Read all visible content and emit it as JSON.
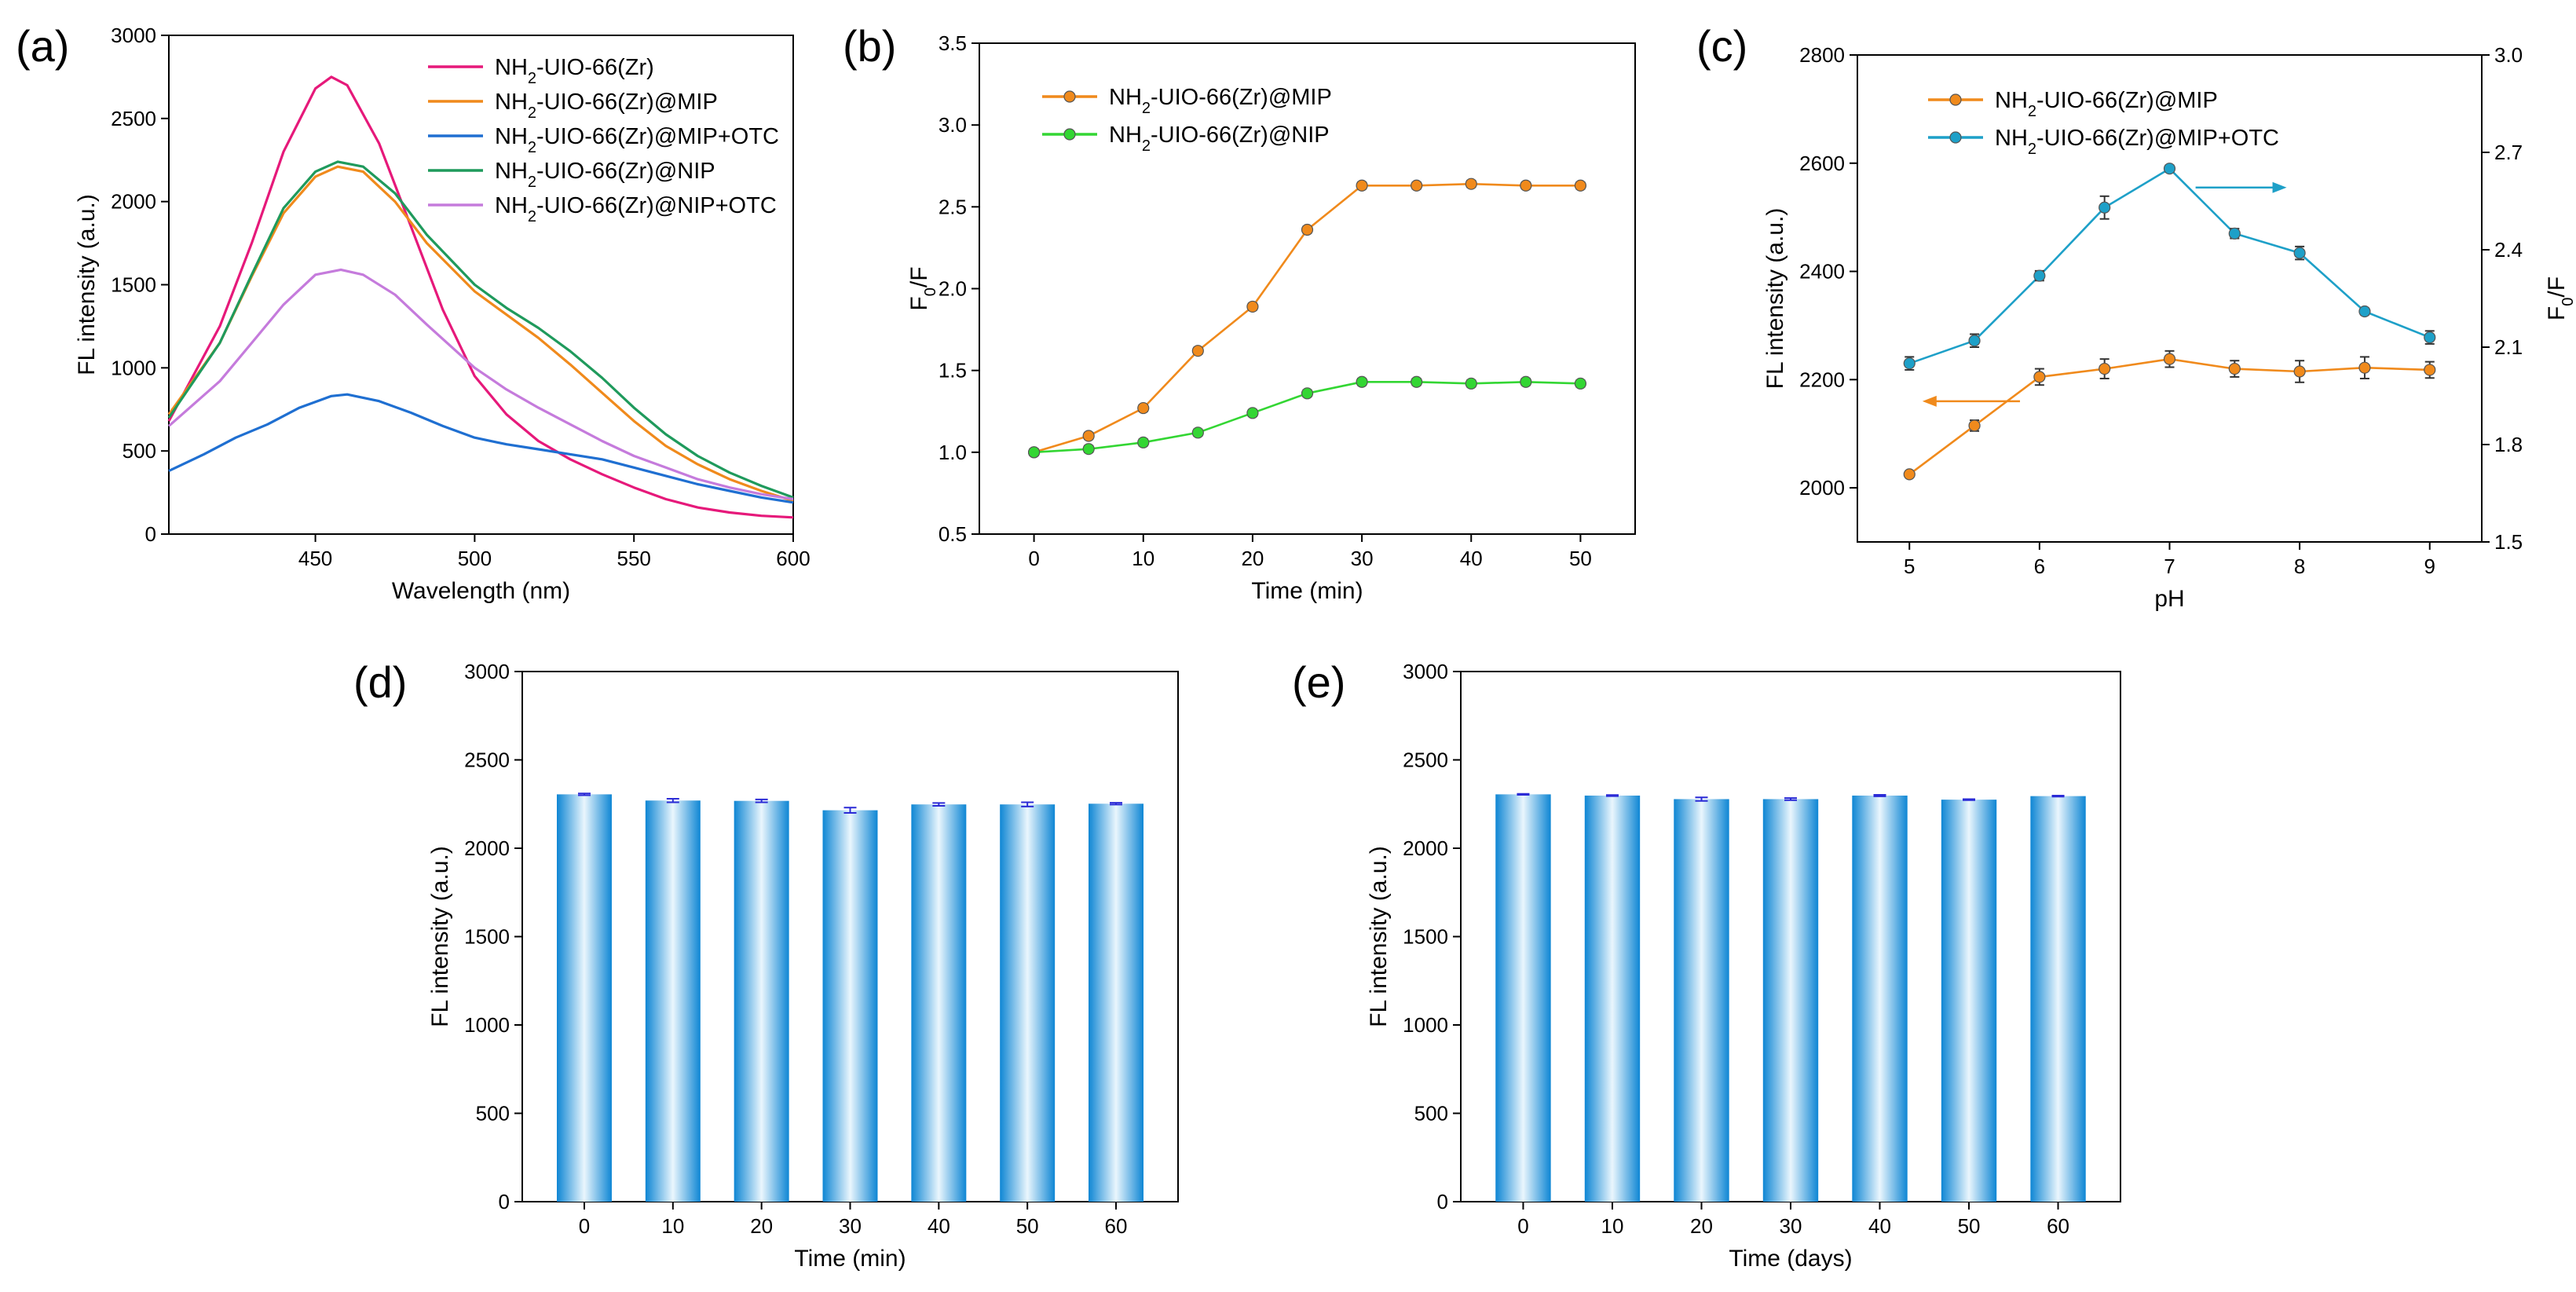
{
  "chart_data": [
    {
      "id": "a",
      "panel_label": "(a)",
      "type": "line",
      "xlabel": "Wavelength (nm)",
      "ylabel": "FL intensity (a.u.)",
      "xlim": [
        404,
        600
      ],
      "ylim": [
        0,
        3000
      ],
      "xticks": [
        450,
        500,
        550,
        600
      ],
      "yticks": [
        0,
        500,
        1000,
        1500,
        2000,
        2500,
        3000
      ],
      "legend_position": "top-right",
      "series": [
        {
          "name": "NH2-UIO-66(Zr)",
          "color": "#e6197a",
          "x": [
            404,
            420,
            430,
            440,
            450,
            455,
            460,
            470,
            480,
            490,
            500,
            510,
            520,
            530,
            540,
            550,
            560,
            570,
            580,
            590,
            600
          ],
          "y": [
            680,
            1250,
            1750,
            2300,
            2680,
            2750,
            2700,
            2350,
            1850,
            1350,
            950,
            720,
            560,
            450,
            360,
            280,
            210,
            160,
            130,
            110,
            100
          ]
        },
        {
          "name": "NH2-UIO-66(Zr)@MIP",
          "color": "#f08a1c",
          "x": [
            404,
            420,
            430,
            440,
            450,
            457,
            465,
            475,
            485,
            500,
            510,
            520,
            530,
            540,
            550,
            560,
            570,
            580,
            590,
            600
          ],
          "y": [
            720,
            1150,
            1550,
            1930,
            2150,
            2210,
            2180,
            2000,
            1750,
            1460,
            1320,
            1180,
            1020,
            850,
            680,
            530,
            420,
            330,
            260,
            200
          ]
        },
        {
          "name": "NH2-UIO-66(Zr)@MIP+OTC",
          "color": "#1f6fd1",
          "x": [
            404,
            415,
            425,
            435,
            445,
            455,
            460,
            470,
            480,
            490,
            500,
            510,
            520,
            530,
            540,
            550,
            560,
            570,
            580,
            590,
            600
          ],
          "y": [
            380,
            480,
            580,
            660,
            760,
            830,
            840,
            800,
            730,
            650,
            580,
            540,
            510,
            480,
            450,
            400,
            350,
            300,
            260,
            220,
            190
          ]
        },
        {
          "name": "NH2-UIO-66(Zr)@NIP",
          "color": "#1f9a5c",
          "x": [
            404,
            420,
            430,
            440,
            450,
            457,
            465,
            475,
            485,
            500,
            510,
            520,
            530,
            540,
            550,
            560,
            570,
            580,
            590,
            600
          ],
          "y": [
            700,
            1150,
            1560,
            1960,
            2180,
            2240,
            2210,
            2050,
            1800,
            1500,
            1360,
            1240,
            1100,
            940,
            760,
            600,
            470,
            370,
            290,
            220
          ]
        },
        {
          "name": "NH2-UIO-66(Zr)@NIP+OTC",
          "color": "#c57bdc",
          "x": [
            404,
            420,
            430,
            440,
            450,
            458,
            465,
            475,
            485,
            500,
            510,
            520,
            530,
            540,
            550,
            560,
            570,
            580,
            590,
            600
          ],
          "y": [
            650,
            920,
            1150,
            1380,
            1560,
            1590,
            1560,
            1440,
            1260,
            1000,
            870,
            760,
            660,
            560,
            470,
            400,
            330,
            280,
            240,
            210
          ]
        }
      ]
    },
    {
      "id": "b",
      "panel_label": "(b)",
      "type": "line",
      "xlabel": "Time (min)",
      "ylabel": "F0/F",
      "ylabel_main": "F",
      "ylabel_sub": "0",
      "ylabel_tail": "/F",
      "xlim": [
        -5,
        55
      ],
      "ylim": [
        0.5,
        3.5
      ],
      "xticks": [
        0,
        10,
        20,
        30,
        40,
        50
      ],
      "yticks": [
        0.5,
        1.0,
        1.5,
        2.0,
        2.5,
        3.0,
        3.5
      ],
      "yticklabels": [
        "0.5",
        "1.0",
        "1.5",
        "2.0",
        "2.5",
        "3.0",
        "3.5"
      ],
      "legend_position": "top-left",
      "series": [
        {
          "name": "NH2-UIO-66(Zr)@MIP",
          "color": "#f08a1c",
          "x": [
            0,
            5,
            10,
            15,
            20,
            25,
            30,
            35,
            40,
            45,
            50
          ],
          "y": [
            1.0,
            1.1,
            1.27,
            1.62,
            1.89,
            2.36,
            2.63,
            2.63,
            2.64,
            2.63,
            2.63
          ],
          "err": [
            0.02,
            0.02,
            0.02,
            0.02,
            0.02,
            0.02,
            0.02,
            0.02,
            0.02,
            0.02,
            0.02
          ]
        },
        {
          "name": "NH2-UIO-66(Zr)@NIP",
          "color": "#33d633",
          "x": [
            0,
            5,
            10,
            15,
            20,
            25,
            30,
            35,
            40,
            45,
            50
          ],
          "y": [
            1.0,
            1.02,
            1.06,
            1.12,
            1.24,
            1.36,
            1.43,
            1.43,
            1.42,
            1.43,
            1.42
          ],
          "err": [
            0.02,
            0.02,
            0.02,
            0.02,
            0.02,
            0.02,
            0.02,
            0.02,
            0.02,
            0.02,
            0.02
          ]
        }
      ]
    },
    {
      "id": "c",
      "panel_label": "(c)",
      "type": "line",
      "xlabel": "pH",
      "ylabel": "FL intensity (a.u.)",
      "ylabel_right_main": "F",
      "ylabel_right_sub": "0",
      "ylabel_right_tail": "/F",
      "xlim": [
        4.6,
        9.4
      ],
      "ylim": [
        1900,
        2800
      ],
      "ylim_right": [
        1.5,
        3.0
      ],
      "xticks": [
        5,
        6,
        7,
        8,
        9
      ],
      "yticks": [
        2000,
        2200,
        2400,
        2600,
        2800
      ],
      "yticks_right": [
        1.5,
        1.8,
        2.1,
        2.4,
        2.7,
        3.0
      ],
      "yticklabels_right": [
        "1.5",
        "1.8",
        "2.1",
        "2.4",
        "2.7",
        "3.0"
      ],
      "legend_position": "top-left",
      "series": [
        {
          "name": "NH2-UIO-66(Zr)@MIP",
          "color": "#f08a1c",
          "axis": "left",
          "x": [
            5,
            5.5,
            6,
            6.5,
            7,
            7.5,
            8,
            8.5,
            9
          ],
          "y": [
            2025,
            2115,
            2205,
            2220,
            2238,
            2220,
            2215,
            2222,
            2218
          ],
          "err": [
            5,
            10,
            15,
            18,
            15,
            15,
            20,
            20,
            15
          ]
        },
        {
          "name": "NH2-UIO-66(Zr)@MIP+OTC",
          "color": "#1ea0c8",
          "axis": "right",
          "x": [
            5,
            5.5,
            6,
            6.5,
            7,
            7.5,
            8,
            8.5,
            9
          ],
          "y": [
            2.05,
            2.12,
            2.32,
            2.53,
            2.65,
            2.45,
            2.39,
            2.21,
            2.13
          ],
          "err": [
            0.02,
            0.02,
            0.015,
            0.035,
            0.01,
            0.015,
            0.02,
            0.01,
            0.02
          ]
        }
      ]
    },
    {
      "id": "d",
      "panel_label": "(d)",
      "type": "bar",
      "xlabel": "Time (min)",
      "ylabel": "FL intensity (a.u.)",
      "ylim": [
        0,
        3000
      ],
      "yticks": [
        0,
        500,
        1000,
        1500,
        2000,
        2500,
        3000
      ],
      "categories": [
        "0",
        "10",
        "20",
        "30",
        "40",
        "50",
        "60"
      ],
      "values": [
        2305,
        2270,
        2268,
        2215,
        2248,
        2248,
        2252
      ],
      "err": [
        5,
        10,
        8,
        15,
        8,
        12,
        5
      ]
    },
    {
      "id": "e",
      "panel_label": "(e)",
      "type": "bar",
      "xlabel": "Time (days)",
      "ylabel": "FL intensity (a.u.)",
      "ylim": [
        0,
        3000
      ],
      "yticks": [
        0,
        500,
        1000,
        1500,
        2000,
        2500,
        3000
      ],
      "categories": [
        "0",
        "10",
        "20",
        "30",
        "40",
        "50",
        "60"
      ],
      "values": [
        2305,
        2298,
        2278,
        2278,
        2298,
        2275,
        2295
      ],
      "err": [
        3,
        3,
        10,
        6,
        4,
        3,
        3
      ]
    }
  ]
}
